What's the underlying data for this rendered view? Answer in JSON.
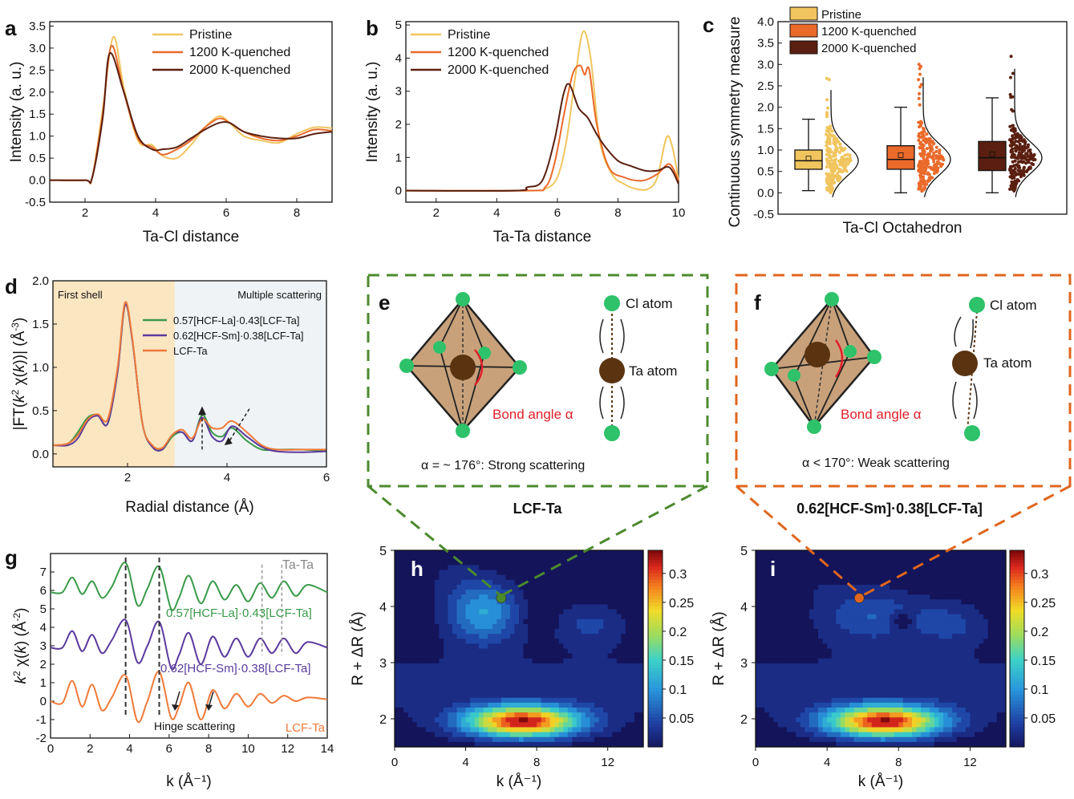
{
  "colors": {
    "pristine": "#f1c55e",
    "q1200": "#ea6a2a",
    "q2000": "#5a1f10",
    "la": "#3a9a4a",
    "sm": "#5b3a9e",
    "lcf": "#ef7a3a",
    "green_dash": "#4c8a2e",
    "orange_dash": "#e0661e",
    "first_shell_bg": "#fbe6c2",
    "multi_bg": "#f0f3f5",
    "octa_fill": "#c8a17a",
    "cl_atom": "#2ec26a",
    "ta_atom": "#5a3410",
    "bond_angle": "#e0202a"
  },
  "chart_data": [
    {
      "panel": "a",
      "type": "line",
      "xlabel": "Ta-Cl distance",
      "ylabel": "Intensity (a. u.)",
      "xlim": [
        1,
        9
      ],
      "ylim": [
        -0.5,
        3.6
      ],
      "xticks": [
        "2",
        "4",
        "6",
        "8"
      ],
      "yticks": [
        "-0.5",
        "0.0",
        "0.5",
        "1.0",
        "1.5",
        "2.0",
        "2.5",
        "3.0",
        "3.5"
      ],
      "legend_position": "top-right",
      "series": [
        {
          "name": "Pristine",
          "x": [
            1,
            2,
            2.2,
            2.5,
            2.8,
            3.1,
            3.5,
            3.9,
            4.2,
            4.6,
            5.0,
            5.4,
            5.8,
            6.1,
            6.5,
            7.0,
            7.5,
            8.0,
            8.5,
            9.0
          ],
          "y": [
            0,
            0,
            0.05,
            1.6,
            3.25,
            2.1,
            0.9,
            0.8,
            0.55,
            0.5,
            0.8,
            1.2,
            1.45,
            1.3,
            1.0,
            0.9,
            0.85,
            1.05,
            1.2,
            1.18
          ]
        },
        {
          "name": "1200 K-quenched",
          "x": [
            1,
            2,
            2.2,
            2.5,
            2.75,
            3.1,
            3.5,
            3.9,
            4.2,
            4.6,
            5.0,
            5.4,
            5.8,
            6.1,
            6.5,
            7.0,
            7.5,
            8.0,
            8.5,
            9.0
          ],
          "y": [
            0,
            0,
            0.05,
            1.5,
            3.05,
            2.0,
            0.95,
            0.75,
            0.58,
            0.7,
            0.9,
            1.2,
            1.4,
            1.3,
            1.1,
            0.95,
            0.9,
            1.0,
            1.15,
            1.12
          ]
        },
        {
          "name": "2000 K-quenched",
          "x": [
            1,
            2,
            2.2,
            2.5,
            2.7,
            3.1,
            3.5,
            3.9,
            4.2,
            4.6,
            5.0,
            5.4,
            5.8,
            6.1,
            6.5,
            7.0,
            7.5,
            8.0,
            8.5,
            9.0
          ],
          "y": [
            0,
            0,
            0.05,
            1.4,
            2.88,
            2.0,
            1.0,
            0.7,
            0.7,
            0.75,
            0.95,
            1.15,
            1.3,
            1.3,
            1.1,
            1.0,
            0.95,
            0.95,
            1.05,
            1.1
          ]
        }
      ]
    },
    {
      "panel": "b",
      "type": "line",
      "xlabel": "Ta-Ta distance",
      "ylabel": "Intensity (a. u.)",
      "xlim": [
        1,
        10
      ],
      "ylim": [
        -0.35,
        5.1
      ],
      "xticks": [
        "2",
        "4",
        "6",
        "8",
        "10"
      ],
      "yticks": [
        "0",
        "1",
        "2",
        "3",
        "4",
        "5"
      ],
      "legend_position": "top-left",
      "series": [
        {
          "name": "Pristine",
          "x": [
            1,
            5.0,
            5.6,
            6.0,
            6.3,
            6.6,
            6.85,
            7.1,
            7.4,
            7.8,
            8.2,
            8.6,
            9.0,
            9.3,
            9.6,
            9.8,
            10.0
          ],
          "y": [
            0,
            0,
            0.05,
            0.4,
            1.5,
            3.5,
            4.8,
            4.0,
            1.5,
            0.5,
            0.2,
            0.05,
            0.05,
            0.4,
            1.6,
            1.3,
            0.3
          ]
        },
        {
          "name": "1200 K-quenched",
          "x": [
            1,
            5.0,
            5.6,
            5.9,
            6.2,
            6.5,
            6.75,
            6.9,
            7.05,
            7.3,
            7.7,
            8.2,
            8.8,
            9.3,
            9.7,
            10.0
          ],
          "y": [
            0,
            0,
            0.1,
            0.8,
            2.2,
            3.5,
            3.78,
            3.5,
            3.65,
            2.0,
            0.7,
            0.4,
            0.3,
            0.5,
            0.8,
            0.3
          ]
        },
        {
          "name": "2000 K-quenched",
          "x": [
            1,
            4.6,
            5.0,
            5.5,
            5.9,
            6.2,
            6.4,
            6.7,
            7.0,
            7.3,
            7.6,
            8.0,
            8.4,
            8.9,
            9.3,
            9.7,
            10.0
          ],
          "y": [
            0,
            0,
            0.1,
            0.3,
            1.5,
            2.9,
            3.2,
            2.5,
            2.2,
            1.7,
            1.3,
            0.9,
            0.75,
            0.6,
            0.6,
            0.7,
            0.2
          ]
        }
      ]
    },
    {
      "panel": "c",
      "type": "box",
      "xlabel": "Ta-Cl Octahedron",
      "ylabel": "Continuous symmetry measure",
      "ylim": [
        -0.5,
        4.0
      ],
      "yticks": [
        "-0.5",
        "0.0",
        "0.5",
        "1.0",
        "1.5",
        "2.0",
        "2.5",
        "3.0",
        "3.5",
        "4.0"
      ],
      "legend_position": "top-left",
      "series": [
        {
          "name": "Pristine",
          "whisker_low": 0.05,
          "q1": 0.55,
          "median": 0.75,
          "mean": 0.8,
          "q3": 1.0,
          "whisker_high": 1.72,
          "points_max": 2.75
        },
        {
          "name": "1200 K-quenched",
          "whisker_low": 0.0,
          "q1": 0.55,
          "median": 0.78,
          "mean": 0.88,
          "q3": 1.1,
          "whisker_high": 2.0,
          "points_max": 3.05
        },
        {
          "name": "2000 K-quenched",
          "whisker_low": 0.0,
          "q1": 0.52,
          "median": 0.82,
          "mean": 0.9,
          "q3": 1.2,
          "whisker_high": 2.22,
          "points_max": 3.25
        }
      ]
    },
    {
      "panel": "d",
      "type": "line",
      "xlabel": "Radial distance (Å)",
      "ylim": [
        -0.15,
        2.0
      ],
      "xlim": [
        0.5,
        6
      ],
      "xticks": [
        "2",
        "4",
        "6"
      ],
      "yticks": [
        "0.0",
        "0.5",
        "1.0",
        "1.5",
        "2.0"
      ],
      "legend_position": "upper-middle",
      "annotations": [
        "First shell",
        "Multiple scattering"
      ],
      "series": [
        {
          "name": "0.57[HCF-La]·0.43[LCF-Ta]",
          "x": [
            0.5,
            0.8,
            1.0,
            1.2,
            1.4,
            1.6,
            1.8,
            1.95,
            2.1,
            2.3,
            2.5,
            2.7,
            2.9,
            3.1,
            3.3,
            3.5,
            3.7,
            3.9,
            4.1,
            4.4,
            4.7,
            5.0,
            5.5,
            6.0
          ],
          "y": [
            0.1,
            0.12,
            0.25,
            0.42,
            0.45,
            0.35,
            0.95,
            1.72,
            1.3,
            0.35,
            0.08,
            0.05,
            0.2,
            0.25,
            0.15,
            0.45,
            0.25,
            0.2,
            0.3,
            0.15,
            0.05,
            0.05,
            0.05,
            0.03
          ]
        },
        {
          "name": "0.62[HCF-Sm]·0.38[LCF-Ta]",
          "x": [
            0.5,
            0.8,
            1.0,
            1.2,
            1.4,
            1.6,
            1.8,
            1.95,
            2.1,
            2.3,
            2.5,
            2.7,
            2.9,
            3.1,
            3.3,
            3.5,
            3.7,
            3.9,
            4.1,
            4.4,
            4.7,
            5.0,
            5.5,
            6.0
          ],
          "y": [
            0.1,
            0.1,
            0.18,
            0.38,
            0.44,
            0.35,
            0.95,
            1.72,
            1.3,
            0.35,
            0.08,
            0.05,
            0.22,
            0.25,
            0.15,
            0.42,
            0.2,
            0.15,
            0.32,
            0.2,
            0.08,
            0.03,
            0.02,
            0.03
          ]
        },
        {
          "name": "LCF-Ta",
          "x": [
            0.5,
            0.8,
            1.0,
            1.2,
            1.4,
            1.6,
            1.8,
            1.95,
            2.1,
            2.3,
            2.5,
            2.7,
            2.9,
            3.1,
            3.3,
            3.5,
            3.7,
            3.9,
            4.1,
            4.4,
            4.7,
            5.0,
            5.5,
            6.0
          ],
          "y": [
            0.1,
            0.12,
            0.22,
            0.4,
            0.46,
            0.4,
            1.0,
            1.75,
            1.32,
            0.35,
            0.1,
            0.07,
            0.22,
            0.28,
            0.18,
            0.4,
            0.3,
            0.3,
            0.38,
            0.25,
            0.1,
            0.05,
            0.05,
            0.05
          ]
        }
      ]
    },
    {
      "panel": "g",
      "type": "line",
      "xlabel": "k (Å⁻¹)",
      "xlim": [
        0,
        14
      ],
      "ylim": [
        -2,
        8
      ],
      "xticks": [
        "0",
        "2",
        "4",
        "6",
        "8",
        "10",
        "12",
        "14"
      ],
      "yticks": [
        "-2",
        "-1",
        "0",
        "1",
        "2",
        "3",
        "4",
        "5",
        "6",
        "7"
      ],
      "annotations": [
        "Ta-Ta",
        "Hinge scattering"
      ],
      "series": [
        {
          "name": "0.57[HCF-La]·0.43[LCF-Ta]",
          "offset": 6.0,
          "x": [
            0,
            0.6,
            1.1,
            1.6,
            2.1,
            2.6,
            3.1,
            3.8,
            4.4,
            4.9,
            5.5,
            6.1,
            6.5,
            7.0,
            7.6,
            8.2,
            8.8,
            9.4,
            10.0,
            10.6,
            11.2,
            11.8,
            12.4,
            13.0,
            14.0
          ],
          "y": [
            5.9,
            5.9,
            6.7,
            5.8,
            6.5,
            5.6,
            6.2,
            7.5,
            5.2,
            6.1,
            7.3,
            5.0,
            5.6,
            6.8,
            5.3,
            6.5,
            5.5,
            6.3,
            5.4,
            6.4,
            5.6,
            6.5,
            5.7,
            6.3,
            5.9
          ]
        },
        {
          "name": "0.62[HCF-Sm]·0.38[LCF-Ta]",
          "offset": 3.0,
          "x": [
            0,
            0.6,
            1.1,
            1.6,
            2.1,
            2.6,
            3.1,
            3.8,
            4.4,
            4.9,
            5.5,
            6.1,
            6.5,
            7.0,
            7.6,
            8.2,
            8.8,
            9.4,
            10.0,
            10.6,
            11.2,
            11.8,
            12.4,
            13.0,
            14.0
          ],
          "y": [
            2.9,
            2.9,
            3.8,
            2.7,
            3.6,
            2.6,
            3.3,
            4.4,
            2.1,
            3.0,
            4.3,
            1.8,
            2.5,
            3.7,
            2.0,
            3.5,
            2.4,
            3.4,
            2.4,
            3.4,
            2.6,
            3.4,
            2.6,
            3.2,
            2.9
          ]
        },
        {
          "name": "LCF-Ta",
          "offset": 0.0,
          "x": [
            0,
            0.6,
            1.1,
            1.6,
            2.1,
            2.6,
            3.1,
            3.8,
            4.4,
            4.9,
            5.5,
            6.1,
            6.5,
            7.0,
            7.6,
            8.2,
            8.8,
            9.4,
            10.0,
            10.6,
            11.2,
            11.8,
            12.4,
            13.0,
            14.0
          ],
          "y": [
            0.0,
            -0.1,
            1.1,
            -0.3,
            0.9,
            -0.5,
            0.2,
            1.4,
            -1.1,
            0.0,
            1.6,
            -0.9,
            -0.3,
            1.0,
            -1.0,
            0.6,
            -0.4,
            0.4,
            -0.3,
            0.4,
            -0.1,
            0.3,
            0.0,
            0.2,
            0.1
          ]
        }
      ]
    },
    {
      "panel": "h",
      "type": "heatmap",
      "xlabel": "k (Å⁻¹)",
      "ylabel": "R + ΔR (Å)",
      "xlim": [
        0,
        14
      ],
      "ylim": [
        1.5,
        5
      ],
      "xticks": [
        "0",
        "4",
        "8",
        "12"
      ],
      "yticks": [
        "2",
        "3",
        "4",
        "5"
      ],
      "colorbar_ticks": [
        "0.3",
        "0.25",
        "0.2",
        "0.15",
        "0.1",
        "0.05"
      ],
      "colorbar_range": [
        0,
        0.34
      ],
      "marker": {
        "k": 6.0,
        "r": 4.15
      }
    },
    {
      "panel": "i",
      "type": "heatmap",
      "xlabel": "k (Å⁻¹)",
      "ylabel": "R + ΔR (Å)",
      "xlim": [
        0,
        14
      ],
      "ylim": [
        1.5,
        5
      ],
      "xticks": [
        "0",
        "4",
        "8",
        "12"
      ],
      "yticks": [
        "2",
        "3",
        "4",
        "5"
      ],
      "colorbar_ticks": [
        "0.3",
        "0.25",
        "0.2",
        "0.15",
        "0.1",
        "0.05"
      ],
      "colorbar_range": [
        0,
        0.34
      ],
      "marker": {
        "k": 5.8,
        "r": 4.15
      }
    }
  ],
  "panels": {
    "a": {
      "letter": "a"
    },
    "b": {
      "letter": "b"
    },
    "c": {
      "letter": "c"
    },
    "d": {
      "letter": "d",
      "first_shell": "First shell",
      "multiple": "Multiple scattering"
    },
    "e": {
      "letter": "e",
      "cl_label": "Cl atom",
      "ta_label": "Ta atom",
      "bond_label": "Bond angle α",
      "caption": "α = ~ 176°: Strong scattering",
      "title": "LCF-Ta"
    },
    "f": {
      "letter": "f",
      "cl_label": "Cl atom",
      "ta_label": "Ta atom",
      "bond_label": "Bond angle α",
      "caption": "α < 170°: Weak scattering",
      "title": "0.62[HCF-Sm]·0.38[LCF-Ta]"
    },
    "g": {
      "letter": "g",
      "ta_ta": "Ta-Ta",
      "hinge": "Hinge scattering"
    },
    "h": {
      "letter": "h"
    },
    "i": {
      "letter": "i"
    }
  }
}
